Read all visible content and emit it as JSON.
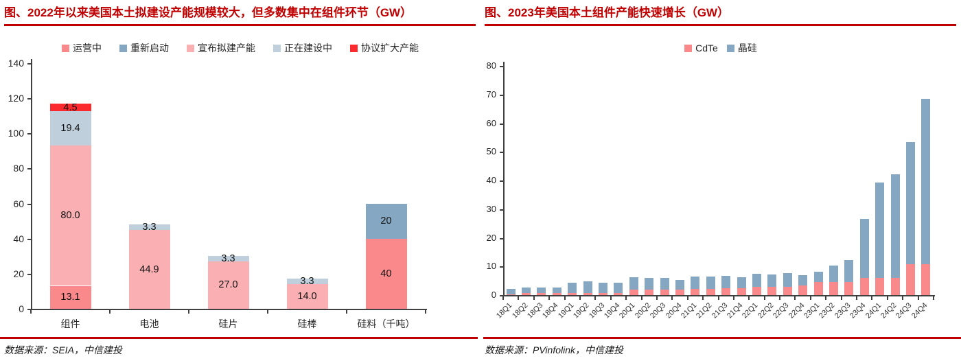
{
  "accent_color": "#C00000",
  "left_panel": {
    "title": "图、2022年以来美国本土拟建设产能规模较大，但多数集中在组件环节（GW）",
    "source": "数据来源：SEIA，中信建投"
  },
  "right_panel": {
    "title": "图、2023年美国本土组件产能快速增长（GW）",
    "source": "数据来源：PVinfolink，中信建投"
  },
  "chart_data": [
    {
      "id": "chart-left",
      "type": "bar",
      "stacked": true,
      "title": "2022年以来美国本土拟建设产能规模较大，但多数集中在组件环节（GW）",
      "xlabel": "",
      "ylabel": "",
      "ylim": [
        0,
        140
      ],
      "ytick": 20,
      "grid": false,
      "legend_position": "top",
      "categories": [
        "组件",
        "电池",
        "硅片",
        "硅棒",
        "硅料（千吨）"
      ],
      "series": [
        {
          "name": "运营中",
          "color": "#F9898B",
          "values": [
            13.1,
            0,
            0,
            0,
            40
          ],
          "labels": [
            "13.1",
            "",
            "",
            "",
            "40"
          ]
        },
        {
          "name": "重新启动",
          "color": "#85A7C2",
          "values": [
            0,
            0,
            0,
            0,
            20
          ],
          "labels": [
            "",
            "",
            "",
            "",
            "20"
          ]
        },
        {
          "name": "宣布拟建产能",
          "color": "#FAAFB3",
          "values": [
            80,
            44.9,
            27,
            14,
            0
          ],
          "labels": [
            "80.0",
            "44.9",
            "27.0",
            "14.0",
            ""
          ]
        },
        {
          "name": "正在建设中",
          "color": "#BFCFDB",
          "values": [
            19.4,
            3.3,
            3.3,
            3.3,
            0
          ],
          "labels": [
            "19.4",
            "3.3",
            "3.3",
            "3.3",
            ""
          ]
        },
        {
          "name": "协议扩大产能",
          "color": "#FA2A2E",
          "values": [
            4.5,
            0,
            0,
            0,
            0
          ],
          "labels": [
            "4.5",
            "",
            "",
            "",
            ""
          ]
        }
      ]
    },
    {
      "id": "chart-right",
      "type": "bar",
      "stacked": true,
      "title": "2023年美国本土组件产能快速增长（GW）",
      "xlabel": "",
      "ylabel": "",
      "ylim": [
        0,
        80
      ],
      "ytick": 10,
      "grid": false,
      "legend_position": "top",
      "categories": [
        "18Q1",
        "18Q2",
        "18Q3",
        "18Q4",
        "19Q1",
        "19Q2",
        "19Q3",
        "19Q4",
        "20Q1",
        "20Q2",
        "20Q3",
        "20Q4",
        "21Q1",
        "21Q2",
        "21Q3",
        "21Q4",
        "22Q1",
        "22Q2",
        "22Q3",
        "22Q4",
        "23Q1",
        "23Q2",
        "23Q3",
        "23Q4",
        "24Q1",
        "24Q2",
        "24Q3",
        "24Q4"
      ],
      "series": [
        {
          "name": "CdTe",
          "color": "#F9898B",
          "values": [
            0.3,
            0.6,
            0.6,
            0.6,
            0.6,
            0.6,
            0.6,
            0.6,
            1.8,
            1.8,
            1.8,
            1.8,
            2.2,
            2.2,
            2.3,
            2.3,
            2.8,
            2.8,
            2.8,
            3.4,
            4.5,
            4.5,
            4.5,
            6.0,
            6.0,
            6.0,
            10.8,
            10.8
          ]
        },
        {
          "name": "晶硅",
          "color": "#85A7C2",
          "values": [
            1.9,
            2.1,
            2.1,
            2.1,
            3.8,
            4.1,
            3.8,
            3.8,
            4.4,
            4.2,
            4.2,
            3.5,
            4.2,
            4.2,
            4.4,
            3.9,
            4.6,
            4.4,
            4.9,
            3.6,
            3.7,
            5.7,
            7.7,
            20.6,
            33.3,
            36.2,
            42.5,
            57.7
          ]
        }
      ]
    }
  ]
}
